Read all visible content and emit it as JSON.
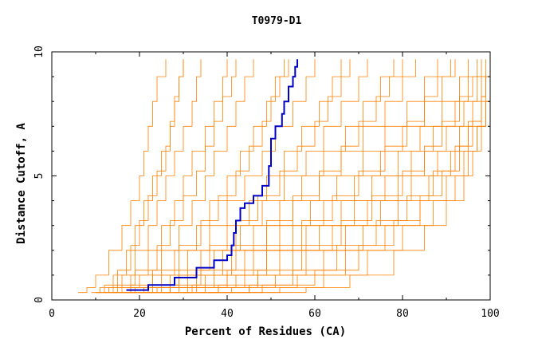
{
  "chart_data": {
    "type": "line",
    "title": "T0979-D1",
    "xlabel": "Percent of Residues (CA)",
    "ylabel": "Distance Cutoff, A",
    "xlim": [
      0,
      100
    ],
    "ylim": [
      0,
      10
    ],
    "x_ticks": [
      {
        "value": 0,
        "label": "0"
      },
      {
        "value": 20,
        "label": "20"
      },
      {
        "value": 40,
        "label": "40"
      },
      {
        "value": 60,
        "label": "60"
      },
      {
        "value": 80,
        "label": "80"
      },
      {
        "value": 100,
        "label": "100"
      }
    ],
    "y_ticks": [
      {
        "value": 0,
        "label": "0"
      },
      {
        "value": 5,
        "label": "5"
      },
      {
        "value": 10,
        "label": "10"
      }
    ],
    "colors": {
      "background_series": "#ff8000",
      "highlight_series": "#0000c8"
    },
    "highlight": {
      "x": [
        17,
        22,
        28,
        33,
        37,
        40,
        41,
        41.5,
        42,
        43,
        44,
        46,
        48,
        49.5,
        50,
        50,
        51,
        52.5,
        53,
        54,
        55,
        55.5,
        56
      ],
      "y": [
        0.4,
        0.6,
        0.9,
        1.3,
        1.6,
        1.8,
        2.2,
        2.7,
        3.2,
        3.7,
        3.9,
        4.2,
        4.6,
        5.4,
        5.8,
        6.5,
        7.0,
        7.5,
        8.0,
        8.6,
        9.0,
        9.4,
        9.7
      ]
    },
    "series": [
      {
        "x": [
          6,
          8,
          10,
          13,
          16,
          18,
          20,
          21,
          22,
          23,
          24,
          26
        ],
        "y": [
          0.3,
          0.5,
          1.0,
          2.0,
          3.0,
          4.0,
          5.0,
          6.0,
          7.0,
          8.0,
          9.0,
          9.7
        ]
      },
      {
        "x": [
          9,
          11,
          14,
          17,
          19,
          21,
          23,
          25,
          27,
          28,
          29,
          30
        ],
        "y": [
          0.3,
          0.5,
          1.0,
          2.0,
          3.0,
          4.0,
          5.0,
          6.0,
          7.0,
          8.0,
          9.0,
          9.7
        ]
      },
      {
        "x": [
          10,
          13,
          16,
          19,
          22,
          24,
          26,
          28,
          30,
          32,
          33,
          34
        ],
        "y": [
          0.3,
          0.5,
          1.0,
          2.0,
          3.0,
          4.0,
          5.0,
          6.0,
          7.0,
          8.0,
          9.0,
          9.7
        ]
      },
      {
        "x": [
          11,
          14,
          18,
          22,
          25,
          28,
          30,
          32,
          35,
          37,
          39,
          40
        ],
        "y": [
          0.3,
          0.5,
          1.0,
          2.0,
          3.0,
          4.0,
          5.0,
          6.0,
          7.0,
          8.0,
          9.0,
          9.7
        ]
      },
      {
        "x": [
          12,
          16,
          20,
          25,
          29,
          32,
          35,
          37,
          40,
          42,
          44,
          46
        ],
        "y": [
          0.3,
          0.5,
          1.0,
          2.0,
          3.0,
          4.0,
          5.0,
          6.0,
          7.0,
          8.0,
          9.0,
          9.7
        ]
      },
      {
        "x": [
          13,
          18,
          23,
          28,
          33,
          36,
          40,
          43,
          46,
          49,
          51,
          53
        ],
        "y": [
          0.3,
          0.5,
          1.0,
          2.0,
          3.0,
          4.0,
          5.0,
          6.0,
          7.0,
          8.0,
          9.0,
          9.7
        ]
      },
      {
        "x": [
          14,
          19,
          25,
          31,
          36,
          40,
          44,
          48,
          51,
          55,
          58,
          60
        ],
        "y": [
          0.3,
          0.5,
          1.0,
          2.0,
          3.0,
          4.0,
          5.0,
          6.0,
          7.0,
          8.0,
          9.0,
          9.7
        ]
      },
      {
        "x": [
          15,
          21,
          27,
          34,
          40,
          45,
          49,
          53,
          57,
          61,
          64,
          66
        ],
        "y": [
          0.3,
          0.5,
          1.0,
          2.0,
          3.0,
          4.0,
          5.0,
          6.0,
          7.0,
          8.0,
          9.0,
          9.7
        ]
      },
      {
        "x": [
          16,
          22,
          29,
          37,
          43,
          48,
          53,
          58,
          62,
          66,
          70,
          72
        ],
        "y": [
          0.3,
          0.5,
          1.0,
          2.0,
          3.0,
          4.0,
          5.0,
          6.0,
          7.0,
          8.0,
          9.0,
          9.7
        ]
      },
      {
        "x": [
          17,
          24,
          31,
          39,
          46,
          52,
          57,
          62,
          67,
          71,
          75,
          78
        ],
        "y": [
          0.3,
          0.5,
          1.0,
          2.0,
          3.0,
          4.0,
          5.0,
          6.0,
          7.0,
          8.0,
          9.0,
          9.7
        ]
      },
      {
        "x": [
          18,
          25,
          33,
          41,
          49,
          55,
          61,
          66,
          71,
          76,
          80,
          83
        ],
        "y": [
          0.3,
          0.5,
          1.0,
          2.0,
          3.0,
          4.0,
          5.0,
          6.0,
          7.0,
          8.0,
          9.0,
          9.7
        ]
      },
      {
        "x": [
          20,
          27,
          35,
          44,
          52,
          59,
          65,
          71,
          76,
          81,
          85,
          88
        ],
        "y": [
          0.3,
          0.5,
          1.0,
          2.0,
          3.0,
          4.0,
          5.0,
          6.0,
          7.0,
          8.0,
          9.0,
          9.7
        ]
      },
      {
        "x": [
          22,
          29,
          37,
          46,
          55,
          62,
          69,
          75,
          80,
          85,
          89,
          92
        ],
        "y": [
          0.3,
          0.5,
          1.0,
          2.0,
          3.0,
          4.0,
          5.0,
          6.0,
          7.0,
          8.0,
          9.0,
          9.7
        ]
      },
      {
        "x": [
          24,
          31,
          40,
          49,
          58,
          66,
          73,
          79,
          84,
          89,
          93,
          95
        ],
        "y": [
          0.3,
          0.5,
          1.0,
          2.0,
          3.0,
          4.0,
          5.0,
          6.0,
          7.0,
          8.0,
          9.0,
          9.7
        ]
      },
      {
        "x": [
          26,
          33,
          42,
          52,
          61,
          69,
          76,
          82,
          87,
          92,
          95,
          97
        ],
        "y": [
          0.3,
          0.5,
          1.0,
          2.0,
          3.0,
          4.0,
          5.0,
          6.0,
          7.0,
          8.0,
          9.0,
          9.7
        ]
      },
      {
        "x": [
          28,
          35,
          44,
          55,
          64,
          72,
          79,
          85,
          90,
          94,
          97,
          99
        ],
        "y": [
          0.3,
          0.5,
          1.0,
          2.0,
          3.0,
          4.0,
          5.0,
          6.0,
          7.0,
          8.0,
          9.0,
          9.7
        ]
      },
      {
        "x": [
          30,
          38,
          47,
          58,
          67,
          75,
          82,
          88,
          93,
          96,
          98,
          100
        ],
        "y": [
          0.3,
          0.5,
          1.0,
          2.0,
          3.0,
          4.0,
          5.0,
          6.0,
          7.0,
          8.0,
          9.0,
          9.7
        ]
      },
      {
        "x": [
          33,
          41,
          51,
          62,
          71,
          79,
          86,
          91,
          95,
          98,
          99,
          100
        ],
        "y": [
          0.3,
          0.5,
          1.0,
          2.0,
          3.0,
          4.0,
          5.0,
          6.0,
          7.0,
          8.0,
          9.0,
          9.7
        ]
      },
      {
        "x": [
          35,
          45,
          56,
          67,
          76,
          84,
          90,
          94,
          97,
          99,
          100,
          100
        ],
        "y": [
          0.3,
          0.5,
          1.0,
          2.0,
          3.0,
          4.0,
          5.0,
          6.0,
          7.0,
          8.0,
          9.0,
          9.7
        ]
      },
      {
        "x": [
          40,
          52,
          62,
          72,
          80,
          87,
          92,
          95,
          97,
          99,
          100,
          100
        ],
        "y": [
          0.3,
          0.5,
          1.0,
          2.0,
          3.0,
          4.0,
          5.0,
          6.0,
          7.0,
          8.0,
          9.0,
          9.7
        ]
      },
      {
        "x": [
          45,
          58,
          68,
          78,
          85,
          90,
          94,
          96,
          98,
          99,
          100,
          100
        ],
        "y": [
          0.3,
          0.5,
          1.0,
          2.0,
          3.0,
          4.0,
          5.0,
          6.0,
          7.0,
          8.0,
          9.0,
          9.7
        ]
      },
      {
        "x": [
          10,
          12,
          15,
          18,
          20,
          22,
          24,
          26,
          27,
          28,
          29,
          30
        ],
        "y": [
          0.3,
          0.6,
          1.2,
          2.2,
          3.2,
          4.2,
          5.2,
          6.2,
          7.2,
          8.2,
          9.0,
          9.7
        ]
      },
      {
        "x": [
          12,
          15,
          19,
          24,
          27,
          30,
          33,
          35,
          37,
          39,
          41,
          42
        ],
        "y": [
          0.3,
          0.6,
          1.2,
          2.2,
          3.2,
          4.2,
          5.2,
          6.2,
          7.2,
          8.2,
          9.0,
          9.7
        ]
      },
      {
        "x": [
          14,
          18,
          23,
          29,
          34,
          38,
          42,
          45,
          48,
          50,
          52,
          54
        ],
        "y": [
          0.3,
          0.6,
          1.2,
          2.2,
          3.2,
          4.2,
          5.2,
          6.2,
          7.2,
          8.2,
          9.0,
          9.7
        ]
      },
      {
        "x": [
          18,
          23,
          29,
          36,
          42,
          47,
          52,
          56,
          60,
          63,
          66,
          68
        ],
        "y": [
          0.3,
          0.6,
          1.2,
          2.2,
          3.2,
          4.2,
          5.2,
          6.2,
          7.2,
          8.2,
          9.0,
          9.7
        ]
      },
      {
        "x": [
          21,
          27,
          34,
          42,
          49,
          55,
          61,
          66,
          70,
          74,
          77,
          80
        ],
        "y": [
          0.3,
          0.6,
          1.2,
          2.2,
          3.2,
          4.2,
          5.2,
          6.2,
          7.2,
          8.2,
          9.0,
          9.7
        ]
      },
      {
        "x": [
          25,
          32,
          40,
          49,
          57,
          64,
          70,
          76,
          81,
          85,
          88,
          91
        ],
        "y": [
          0.3,
          0.6,
          1.2,
          2.2,
          3.2,
          4.2,
          5.2,
          6.2,
          7.2,
          8.2,
          9.0,
          9.7
        ]
      },
      {
        "x": [
          30,
          38,
          47,
          57,
          66,
          73,
          80,
          85,
          89,
          93,
          96,
          98
        ],
        "y": [
          0.3,
          0.6,
          1.2,
          2.2,
          3.2,
          4.2,
          5.2,
          6.2,
          7.2,
          8.2,
          9.0,
          9.7
        ]
      },
      {
        "x": [
          36,
          45,
          55,
          65,
          74,
          81,
          87,
          92,
          95,
          98,
          99,
          100
        ],
        "y": [
          0.3,
          0.6,
          1.2,
          2.2,
          3.2,
          4.2,
          5.2,
          6.2,
          7.2,
          8.2,
          9.0,
          9.7
        ]
      },
      {
        "x": [
          34,
          48,
          60,
          70,
          78,
          84,
          89,
          93,
          96,
          98,
          99,
          100
        ],
        "y": [
          0.3,
          0.6,
          1.2,
          2.2,
          3.2,
          4.2,
          5.2,
          6.2,
          7.2,
          8.2,
          9.0,
          9.7
        ]
      }
    ]
  }
}
